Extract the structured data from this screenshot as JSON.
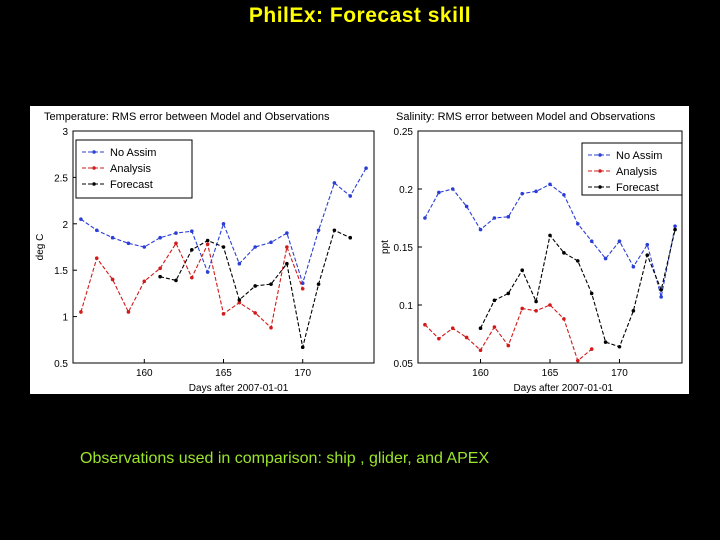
{
  "slide": {
    "title": "PhilEx: Forecast skill",
    "caption": "Observations used in comparison: ship , glider,  and APEX"
  },
  "chart_data": [
    {
      "type": "line",
      "title": "Temperature: RMS error between Model and Observations",
      "xlabel": "Days after 2007-01-01",
      "ylabel": "deg C",
      "xlim": [
        155.5,
        174.5
      ],
      "ylim": [
        0.5,
        3
      ],
      "xticks": [
        160,
        165,
        170
      ],
      "yticks": [
        0.5,
        1,
        1.5,
        2,
        2.5,
        3
      ],
      "legend_position": "upper-left",
      "series": [
        {
          "name": "No Assim",
          "color": "#2b3fd6",
          "points": [
            [
              156,
              2.05
            ],
            [
              157,
              1.93
            ],
            [
              158,
              1.85
            ],
            [
              159,
              1.79
            ],
            [
              160,
              1.75
            ],
            [
              161,
              1.85
            ],
            [
              162,
              1.9
            ],
            [
              163,
              1.92
            ],
            [
              164,
              1.48
            ],
            [
              165,
              2.0
            ],
            [
              166,
              1.57
            ],
            [
              167,
              1.75
            ],
            [
              168,
              1.8
            ],
            [
              169,
              1.9
            ],
            [
              170,
              1.36
            ],
            [
              171,
              1.93
            ],
            [
              172,
              2.44
            ],
            [
              173,
              2.3
            ],
            [
              174,
              2.6
            ]
          ]
        },
        {
          "name": "Analysis",
          "color": "#d21a1a",
          "points": [
            [
              156,
              1.05
            ],
            [
              157,
              1.63
            ],
            [
              158,
              1.4
            ],
            [
              159,
              1.05
            ],
            [
              160,
              1.38
            ],
            [
              161,
              1.52
            ],
            [
              162,
              1.79
            ],
            [
              163,
              1.42
            ],
            [
              164,
              1.78
            ],
            [
              165,
              1.03
            ],
            [
              166,
              1.15
            ],
            [
              167,
              1.04
            ],
            [
              168,
              0.88
            ],
            [
              169,
              1.75
            ],
            [
              170,
              1.3
            ]
          ]
        },
        {
          "name": "Forecast",
          "color": "#000000",
          "points": [
            [
              161,
              1.43
            ],
            [
              162,
              1.39
            ],
            [
              163,
              1.72
            ],
            [
              164,
              1.82
            ],
            [
              165,
              1.75
            ],
            [
              166,
              1.18
            ],
            [
              167,
              1.33
            ],
            [
              168,
              1.35
            ],
            [
              169,
              1.57
            ],
            [
              170,
              0.67
            ],
            [
              171,
              1.35
            ],
            [
              172,
              1.93
            ],
            [
              173,
              1.85
            ]
          ]
        }
      ]
    },
    {
      "type": "line",
      "title": "Salinity: RMS error between Model and Observations",
      "xlabel": "Days after 2007-01-01",
      "ylabel": "ppt",
      "xlim": [
        155.5,
        174.5
      ],
      "ylim": [
        0.05,
        0.25
      ],
      "xticks": [
        160,
        165,
        170
      ],
      "yticks": [
        0.05,
        0.1,
        0.15,
        0.2,
        0.25
      ],
      "legend_position": "upper-right",
      "series": [
        {
          "name": "No Assim",
          "color": "#2b3fd6",
          "points": [
            [
              156,
              0.175
            ],
            [
              157,
              0.197
            ],
            [
              158,
              0.2
            ],
            [
              159,
              0.185
            ],
            [
              160,
              0.165
            ],
            [
              161,
              0.175
            ],
            [
              162,
              0.176
            ],
            [
              163,
              0.196
            ],
            [
              164,
              0.198
            ],
            [
              165,
              0.204
            ],
            [
              166,
              0.195
            ],
            [
              167,
              0.17
            ],
            [
              168,
              0.155
            ],
            [
              169,
              0.14
            ],
            [
              170,
              0.155
            ],
            [
              171,
              0.133
            ],
            [
              172,
              0.152
            ],
            [
              173,
              0.107
            ],
            [
              174,
              0.168
            ]
          ]
        },
        {
          "name": "Analysis",
          "color": "#d21a1a",
          "points": [
            [
              156,
              0.083
            ],
            [
              157,
              0.071
            ],
            [
              158,
              0.08
            ],
            [
              159,
              0.072
            ],
            [
              160,
              0.061
            ],
            [
              161,
              0.081
            ],
            [
              162,
              0.065
            ],
            [
              163,
              0.097
            ],
            [
              164,
              0.095
            ],
            [
              165,
              0.1
            ],
            [
              166,
              0.088
            ],
            [
              167,
              0.052
            ],
            [
              168,
              0.062
            ]
          ]
        },
        {
          "name": "Forecast",
          "color": "#000000",
          "points": [
            [
              160,
              0.08
            ],
            [
              161,
              0.104
            ],
            [
              162,
              0.11
            ],
            [
              163,
              0.13
            ],
            [
              164,
              0.103
            ],
            [
              165,
              0.16
            ],
            [
              166,
              0.145
            ],
            [
              167,
              0.138
            ],
            [
              168,
              0.11
            ],
            [
              169,
              0.068
            ],
            [
              170,
              0.064
            ],
            [
              171,
              0.095
            ],
            [
              172,
              0.143
            ],
            [
              173,
              0.113
            ],
            [
              174,
              0.165
            ]
          ]
        }
      ]
    }
  ]
}
